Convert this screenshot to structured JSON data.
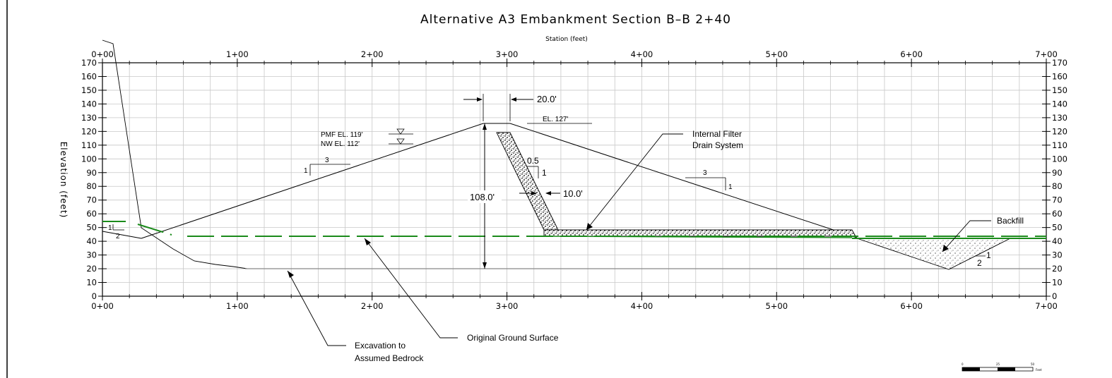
{
  "title": "Alternative A3 Embankment Section B–B 2+40",
  "x_axis_label": "Station (feet)",
  "y_axis_label": "Elevation (feet)",
  "x_ticks": [
    "0+00",
    "1+00",
    "2+00",
    "3+00",
    "4+00",
    "5+00",
    "6+00",
    "7+00"
  ],
  "y_ticks": [
    "0",
    "10",
    "20",
    "30",
    "40",
    "50",
    "60",
    "70",
    "80",
    "90",
    "100",
    "110",
    "120",
    "130",
    "140",
    "150",
    "160",
    "170"
  ],
  "annotations": {
    "crest_width": "20.0'",
    "crest_elevation": "EL. 127'",
    "pmf": "PMF EL. 119'",
    "nw": "NW EL. 112'",
    "height": "108.0'",
    "filter_width": "10.0'",
    "filter_slope_h": "0.5",
    "filter_slope_v": "1",
    "upstream_slope_h": "3",
    "upstream_slope_v": "1",
    "downstream_slope_h": "3",
    "downstream_slope_v": "1",
    "left_slope_v": "1",
    "left_slope_h": "2",
    "trench_slope_v": "1",
    "trench_slope_h": "2",
    "internal_filter_line1": "Internal Filter",
    "internal_filter_line2": "Drain System",
    "backfill": "Backfill",
    "original_ground": "Original Ground Surface",
    "excavation_line1": "Excavation to",
    "excavation_line2": "Assumed Bedrock"
  },
  "scale_bar": {
    "labels": [
      "0",
      "25",
      "50"
    ],
    "unit": "Feet"
  },
  "colors": {
    "ground_line": "#1a8a1a",
    "grid": "#c8c8c8",
    "ink": "#000000"
  }
}
